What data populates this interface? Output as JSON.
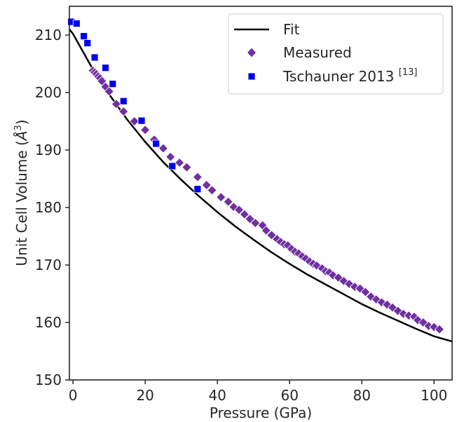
{
  "chart_data": {
    "type": "scatter",
    "xlabel": "Pressure (GPa)",
    "ylabel_main": "Unit Cell Volume (",
    "ylabel_unit": "Å",
    "ylabel_sup": "3",
    "ylabel_close": ")",
    "xlim": [
      -1,
      105
    ],
    "ylim": [
      150,
      215
    ],
    "x_ticks": [
      0,
      20,
      40,
      60,
      80,
      100
    ],
    "y_ticks": [
      150,
      160,
      170,
      180,
      190,
      200,
      210
    ],
    "grid": false,
    "legend_position": "top-right",
    "legend": [
      {
        "label": "Fit",
        "suffix": "",
        "marker": "line"
      },
      {
        "label": "Measured",
        "suffix": "",
        "marker": "diamond"
      },
      {
        "label": "Tschauner 2013 ",
        "suffix": "[13]",
        "marker": "square"
      }
    ],
    "colors": {
      "fit": "#000000",
      "measured": "#7030a0",
      "tschauner": "#0000ee",
      "axes": "#262626"
    },
    "series": [
      {
        "name": "Fit",
        "type": "line",
        "x": [
          -1,
          0,
          5,
          10,
          15,
          20,
          25,
          30,
          35,
          40,
          45,
          50,
          55,
          60,
          65,
          70,
          75,
          80,
          85,
          90,
          95,
          100,
          105
        ],
        "y": [
          211.0,
          210.2,
          204.6,
          199.7,
          195.3,
          191.4,
          187.9,
          184.8,
          181.9,
          179.2,
          176.7,
          174.4,
          172.2,
          170.2,
          168.3,
          166.6,
          164.9,
          163.2,
          161.7,
          160.3,
          158.9,
          157.6,
          156.7
        ]
      },
      {
        "name": "Measured",
        "type": "scatter",
        "marker": "diamond",
        "x": [
          5.5,
          6.0,
          6.5,
          7.0,
          7.5,
          8.0,
          9.0,
          10.0,
          12.0,
          14.0,
          17.0,
          20.0,
          22.5,
          25.0,
          27.0,
          29.5,
          31.5,
          34.5,
          37.0,
          38.5,
          41.0,
          43.0,
          44.5,
          46.0,
          47.5,
          49.0,
          50.5,
          52.5,
          53.5,
          55.0,
          56.5,
          57.5,
          58.5,
          59.5,
          60.5,
          61.5,
          62.5,
          63.5,
          64.5,
          65.5,
          66.5,
          67.5,
          69.0,
          70.0,
          71.0,
          72.0,
          73.5,
          75.0,
          76.5,
          78.0,
          79.5,
          81.0,
          82.5,
          84.0,
          85.5,
          87.0,
          88.5,
          90.0,
          91.5,
          93.0,
          94.5,
          95.5,
          97.0,
          98.5,
          100.0,
          101.5
        ],
        "y": [
          203.8,
          203.5,
          203.2,
          202.8,
          202.5,
          202.0,
          201.0,
          200.2,
          198.0,
          196.7,
          195.0,
          193.5,
          191.8,
          190.3,
          188.8,
          187.8,
          187.0,
          185.3,
          183.9,
          183.0,
          181.8,
          181.0,
          180.1,
          179.6,
          178.8,
          178.0,
          177.3,
          176.9,
          176.0,
          175.2,
          174.5,
          174.0,
          173.6,
          173.4,
          172.8,
          172.3,
          172.0,
          171.5,
          171.1,
          170.6,
          170.2,
          169.9,
          169.4,
          168.9,
          168.7,
          168.2,
          167.8,
          167.2,
          166.7,
          166.2,
          165.9,
          165.3,
          164.5,
          164.0,
          163.5,
          163.1,
          162.6,
          162.0,
          161.5,
          161.2,
          161.0,
          160.4,
          160.0,
          159.4,
          159.2,
          158.8
        ]
      },
      {
        "name": "Tschauner 2013",
        "type": "scatter",
        "marker": "square",
        "x": [
          -0.5,
          1.0,
          3.0,
          4.0,
          6.0,
          9.0,
          11.0,
          14.0,
          19.0,
          23.0,
          27.5,
          34.5
        ],
        "y": [
          212.3,
          212.0,
          209.8,
          208.6,
          206.1,
          204.3,
          201.5,
          198.5,
          195.1,
          191.1,
          187.2,
          183.2
        ]
      }
    ]
  }
}
